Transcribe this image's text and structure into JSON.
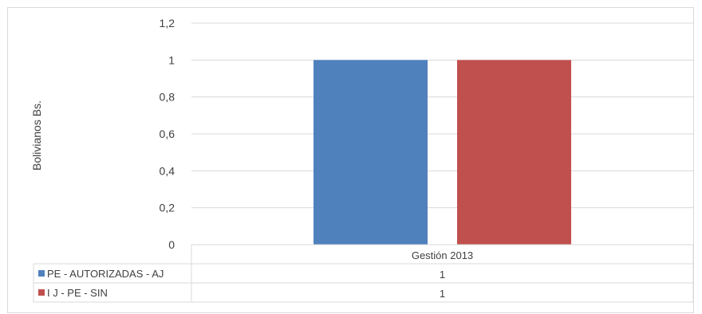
{
  "chart_data": {
    "type": "bar",
    "title": "",
    "ylabel": "Bolivianos  Bs.",
    "xlabel": "",
    "categories": [
      "Gestión 2013"
    ],
    "ylim": [
      0,
      1.2
    ],
    "yticks": [
      "0",
      "0,2",
      "0,4",
      "0,6",
      "0,8",
      "1",
      "1,2"
    ],
    "ytick_values": [
      0,
      0.2,
      0.4,
      0.6,
      0.8,
      1.0,
      1.2
    ],
    "grid": true,
    "legend": "data-table",
    "series": [
      {
        "name": "PE - AUTORIZADAS - AJ",
        "values": [
          1
        ],
        "value_labels": [
          "1"
        ],
        "color": "#4f81bd"
      },
      {
        "name": "I J - PE - SIN",
        "values": [
          1
        ],
        "value_labels": [
          "1"
        ],
        "color": "#c0504d"
      }
    ]
  }
}
